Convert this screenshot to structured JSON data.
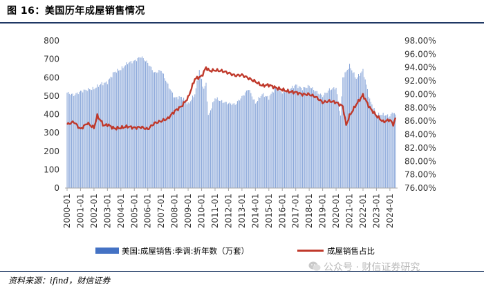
{
  "figure": {
    "title": "图 16：美国历年成屋销售情况",
    "source": "资料来源：ifind，财信证券"
  },
  "watermark": {
    "text": "公众号 · 财信证券研究",
    "icon": "wechat-icon"
  },
  "chart_data": {
    "type": "bar+line",
    "title": "",
    "xlabel": "",
    "x_tick_labels": [
      "2000-01",
      "2001-01",
      "2002-01",
      "2003-01",
      "2004-01",
      "2005-01",
      "2006-01",
      "2007-01",
      "2008-01",
      "2009-01",
      "2010-01",
      "2011-01",
      "2012-01",
      "2013-01",
      "2014-01",
      "2015-01",
      "2016-01",
      "2017-01",
      "2018-01",
      "2019-01",
      "2020-01",
      "2021-01",
      "2022-01",
      "2023-01",
      "2024-01"
    ],
    "y_left": {
      "ticks": [
        "0",
        "100",
        "200",
        "300",
        "400",
        "500",
        "600",
        "700",
        "800"
      ],
      "ylim": [
        0,
        800
      ]
    },
    "y_right": {
      "ticks": [
        "76.00%",
        "78.00%",
        "80.00%",
        "82.00%",
        "84.00%",
        "86.00%",
        "88.00%",
        "90.00%",
        "92.00%",
        "94.00%",
        "96.00%",
        "98.00%"
      ],
      "ylim": [
        76,
        98
      ]
    },
    "legend_position": "bottom",
    "colors": {
      "bars": "#8eaadb",
      "legend_bar": "#4472c4",
      "line": "#c0392b"
    },
    "series": [
      {
        "name": "美国:成屋销售:季调:折年数（万套）",
        "type": "bar",
        "axis": "left",
        "x_start": "2000-01",
        "frequency": "monthly",
        "anchor_values": [
          [
            "2000-01",
            518
          ],
          [
            "2000-07",
            505
          ],
          [
            "2001-01",
            525
          ],
          [
            "2001-07",
            535
          ],
          [
            "2002-01",
            540
          ],
          [
            "2002-07",
            565
          ],
          [
            "2003-01",
            575
          ],
          [
            "2003-07",
            630
          ],
          [
            "2004-01",
            645
          ],
          [
            "2004-07",
            680
          ],
          [
            "2005-01",
            690
          ],
          [
            "2005-07",
            715
          ],
          [
            "2006-01",
            680
          ],
          [
            "2006-07",
            625
          ],
          [
            "2007-01",
            640
          ],
          [
            "2007-07",
            560
          ],
          [
            "2008-01",
            490
          ],
          [
            "2008-07",
            495
          ],
          [
            "2009-01",
            455
          ],
          [
            "2009-07",
            510
          ],
          [
            "2009-11",
            640
          ],
          [
            "2010-03",
            535
          ],
          [
            "2010-05",
            570
          ],
          [
            "2010-07",
            390
          ],
          [
            "2011-01",
            490
          ],
          [
            "2011-07",
            470
          ],
          [
            "2012-01",
            460
          ],
          [
            "2012-07",
            455
          ],
          [
            "2013-01",
            495
          ],
          [
            "2013-07",
            540
          ],
          [
            "2014-01",
            460
          ],
          [
            "2014-07",
            510
          ],
          [
            "2015-01",
            490
          ],
          [
            "2015-07",
            550
          ],
          [
            "2016-01",
            520
          ],
          [
            "2016-07",
            535
          ],
          [
            "2017-01",
            560
          ],
          [
            "2017-07",
            540
          ],
          [
            "2018-01",
            555
          ],
          [
            "2018-07",
            525
          ],
          [
            "2019-01",
            500
          ],
          [
            "2019-07",
            535
          ],
          [
            "2020-01",
            545
          ],
          [
            "2020-05",
            390
          ],
          [
            "2020-07",
            600
          ],
          [
            "2021-01",
            665
          ],
          [
            "2021-07",
            595
          ],
          [
            "2022-01",
            640
          ],
          [
            "2022-07",
            480
          ],
          [
            "2023-01",
            400
          ],
          [
            "2023-07",
            400
          ],
          [
            "2024-01",
            390
          ],
          [
            "2024-04",
            415
          ],
          [
            "2024-06",
            395
          ]
        ]
      },
      {
        "name": "成屋销售占比",
        "type": "line",
        "axis": "right",
        "unit": "%",
        "x_start": "2000-01",
        "frequency": "monthly",
        "anchor_values": [
          [
            "2000-01",
            85.5
          ],
          [
            "2000-07",
            85.9
          ],
          [
            "2001-01",
            84.8
          ],
          [
            "2001-07",
            85.7
          ],
          [
            "2002-01",
            85.0
          ],
          [
            "2002-04",
            86.8
          ],
          [
            "2002-10",
            85.3
          ],
          [
            "2003-01",
            85.5
          ],
          [
            "2003-07",
            84.9
          ],
          [
            "2004-01",
            85.0
          ],
          [
            "2004-07",
            85.2
          ],
          [
            "2005-01",
            85.0
          ],
          [
            "2005-07",
            85.1
          ],
          [
            "2006-01",
            84.8
          ],
          [
            "2006-07",
            85.7
          ],
          [
            "2007-01",
            86.0
          ],
          [
            "2007-07",
            86.4
          ],
          [
            "2008-01",
            87.5
          ],
          [
            "2008-07",
            88.2
          ],
          [
            "2009-01",
            89.5
          ],
          [
            "2009-07",
            92.3
          ],
          [
            "2010-01",
            92.7
          ],
          [
            "2010-05",
            94.0
          ],
          [
            "2010-08",
            93.5
          ],
          [
            "2011-01",
            93.6
          ],
          [
            "2011-07",
            93.5
          ],
          [
            "2012-01",
            93.2
          ],
          [
            "2012-07",
            92.8
          ],
          [
            "2013-01",
            92.9
          ],
          [
            "2013-07",
            92.4
          ],
          [
            "2014-01",
            91.9
          ],
          [
            "2014-07",
            91.3
          ],
          [
            "2015-01",
            91.4
          ],
          [
            "2015-07",
            91.0
          ],
          [
            "2016-01",
            90.7
          ],
          [
            "2016-07",
            90.4
          ],
          [
            "2017-01",
            90.3
          ],
          [
            "2017-07",
            90.0
          ],
          [
            "2018-01",
            90.0
          ],
          [
            "2018-07",
            89.6
          ],
          [
            "2019-01",
            88.8
          ],
          [
            "2019-07",
            89.0
          ],
          [
            "2020-01",
            88.8
          ],
          [
            "2020-07",
            88.2
          ],
          [
            "2020-10",
            85.4
          ],
          [
            "2021-01",
            86.8
          ],
          [
            "2021-07",
            88.5
          ],
          [
            "2022-01",
            89.9
          ],
          [
            "2022-07",
            88.0
          ],
          [
            "2023-01",
            86.8
          ],
          [
            "2023-07",
            85.9
          ],
          [
            "2024-01",
            86.2
          ],
          [
            "2024-04",
            85.5
          ],
          [
            "2024-06",
            86.4
          ]
        ]
      }
    ]
  }
}
